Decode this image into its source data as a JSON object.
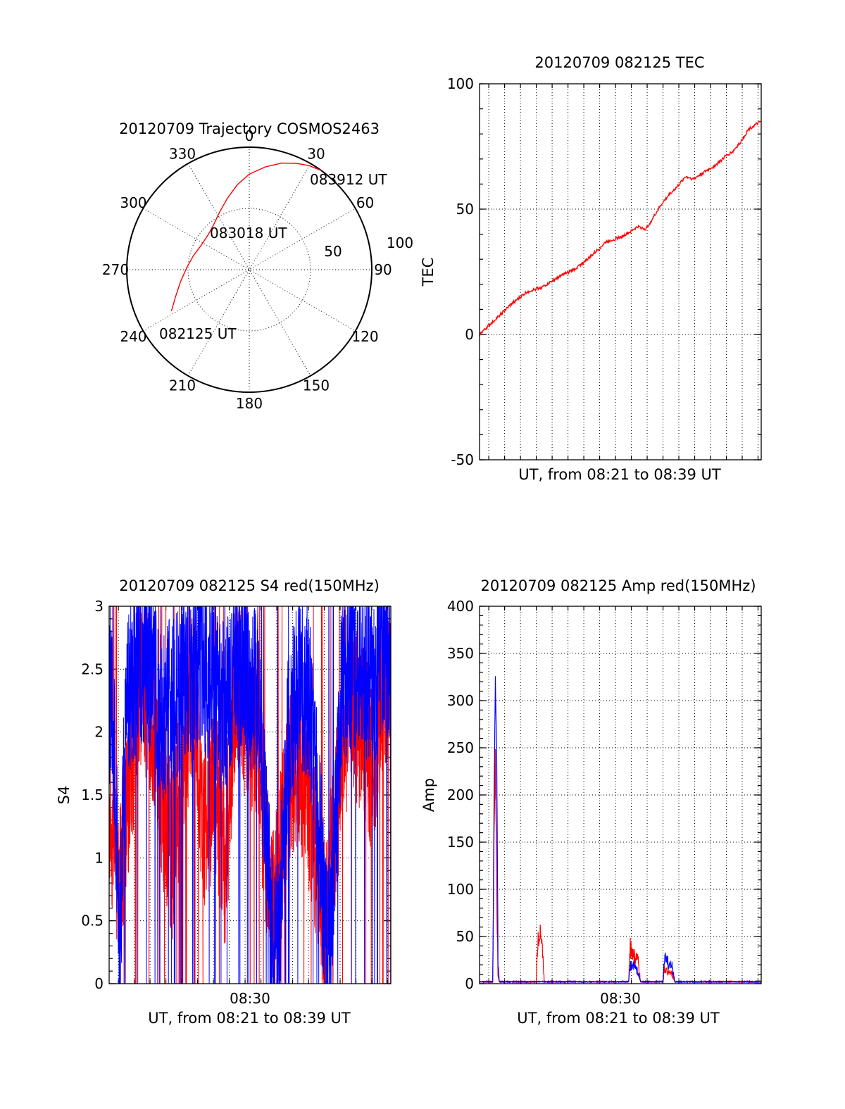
{
  "figure": {
    "date": "20120709",
    "satellite": "COSMOS2463"
  },
  "colors": {
    "red": "#ff0000",
    "blue": "#0000ff",
    "axis": "#000000"
  },
  "chart_data": [
    {
      "id": "trajectory",
      "type": "polar",
      "title": "20120709 Trajectory COSMOS2463",
      "angle_labels": [
        "0",
        "30",
        "60",
        "90",
        "120",
        "150",
        "180",
        "210",
        "240",
        "270",
        "300",
        "330"
      ],
      "radius_labels": [
        "50",
        "100"
      ],
      "rlim": [
        0,
        100
      ],
      "track": {
        "points": [
          {
            "az": 242,
            "r": 72
          },
          {
            "az": 250,
            "r": 64
          },
          {
            "az": 260,
            "r": 57
          },
          {
            "az": 272,
            "r": 51
          },
          {
            "az": 284,
            "r": 47
          },
          {
            "az": 297,
            "r": 44
          },
          {
            "az": 310,
            "r": 44
          },
          {
            "az": 322,
            "r": 47
          },
          {
            "az": 333,
            "r": 53
          },
          {
            "az": 343,
            "r": 61
          },
          {
            "az": 352,
            "r": 70
          },
          {
            "az": 0,
            "r": 78
          },
          {
            "az": 9,
            "r": 85
          },
          {
            "az": 17,
            "r": 91
          },
          {
            "az": 24,
            "r": 95
          },
          {
            "az": 30,
            "r": 98
          },
          {
            "az": 36,
            "r": 100
          }
        ],
        "labels": [
          "082125 UT",
          "083018 UT",
          "083912 UT"
        ]
      },
      "grid": true
    },
    {
      "id": "tec",
      "type": "line",
      "title": "20120709 082125 TEC",
      "xlabel": "UT, from 08:21 to 08:39 UT",
      "ylabel": "TEC",
      "xlim": [
        "08:21:25",
        "08:39:12"
      ],
      "ylim": [
        -50,
        100
      ],
      "yticks": [
        -50,
        0,
        50,
        100
      ],
      "xticklabels": [],
      "grid": true,
      "series": [
        {
          "color": "#ff0000",
          "x": [
            "08:21:25",
            "08:22:25",
            "08:23:25",
            "08:24:25",
            "08:25:25",
            "08:25:55",
            "08:26:25",
            "08:27:25",
            "08:28:25",
            "08:28:55",
            "08:29:25",
            "08:30:25",
            "08:30:55",
            "08:31:25",
            "08:31:55",
            "08:32:25",
            "08:32:55",
            "08:33:25",
            "08:33:55",
            "08:34:25",
            "08:34:55",
            "08:35:25",
            "08:35:55",
            "08:36:25",
            "08:36:55",
            "08:37:25",
            "08:37:55",
            "08:38:25",
            "08:39:12"
          ],
          "y": [
            0,
            6,
            12,
            17,
            19,
            21,
            23,
            26,
            31,
            34,
            37,
            39,
            41,
            43,
            42,
            47,
            52,
            56,
            59,
            63,
            62,
            64,
            66,
            68,
            71,
            73,
            77,
            82,
            85
          ]
        }
      ]
    },
    {
      "id": "s4",
      "type": "line",
      "title": "20120709 082125 S4 red(150MHz)",
      "xlabel": "UT, from 08:21 to 08:39 UT",
      "ylabel": "S4",
      "xlim": [
        "08:21:25",
        "08:39:12"
      ],
      "ylim": [
        0,
        3
      ],
      "yticks": [
        0,
        0.5,
        1,
        1.5,
        2,
        2.5,
        3
      ],
      "yticklabels": [
        "0",
        "0.5",
        "1",
        "1.5",
        "2",
        "2.5",
        "3"
      ],
      "xticklabels": [
        "08:30"
      ],
      "grid": true,
      "series": [
        {
          "color": "#ff0000",
          "x": [
            "08:21:25",
            "08:21:45",
            "08:22:05",
            "08:22:25",
            "08:22:45",
            "08:23:25",
            "08:24:05",
            "08:24:45",
            "08:25:25",
            "08:26:05",
            "08:26:45",
            "08:27:25",
            "08:28:05",
            "08:28:45",
            "08:29:25",
            "08:30:05",
            "08:30:45",
            "08:31:25",
            "08:31:45",
            "08:32:05",
            "08:32:45",
            "08:33:25",
            "08:34:05",
            "08:34:45",
            "08:35:05",
            "08:35:25",
            "08:36:05",
            "08:36:45",
            "08:37:25",
            "08:38:05",
            "08:38:45",
            "08:39:12"
          ],
          "y": [
            1.4,
            1.1,
            0.8,
            1.3,
            1.7,
            2.4,
            2.2,
            1.5,
            1.0,
            1.9,
            2.3,
            1.2,
            1.6,
            0.9,
            2.5,
            2.1,
            2.0,
            0.9,
            0.5,
            0.8,
            1.6,
            1.8,
            1.4,
            0.7,
            0.4,
            0.9,
            1.8,
            2.2,
            2.0,
            1.7,
            2.4,
            2.2
          ]
        },
        {
          "color": "#0000ff",
          "x": [
            "08:21:25",
            "08:21:45",
            "08:22:05",
            "08:22:25",
            "08:22:45",
            "08:23:25",
            "08:24:05",
            "08:24:45",
            "08:25:25",
            "08:26:05",
            "08:26:45",
            "08:27:25",
            "08:28:05",
            "08:28:45",
            "08:29:25",
            "08:30:05",
            "08:30:45",
            "08:31:25",
            "08:31:45",
            "08:32:05",
            "08:32:45",
            "08:33:25",
            "08:34:05",
            "08:34:45",
            "08:35:05",
            "08:35:25",
            "08:36:05",
            "08:36:45",
            "08:37:25",
            "08:38:05",
            "08:38:45",
            "08:39:12"
          ],
          "y": [
            2.3,
            1.9,
            0.2,
            2.0,
            2.4,
            2.6,
            2.5,
            2.1,
            2.3,
            2.4,
            2.6,
            2.5,
            2.3,
            2.2,
            2.6,
            2.4,
            2.3,
            1.0,
            0.3,
            0.3,
            2.0,
            2.4,
            2.2,
            1.2,
            0.3,
            0.4,
            2.3,
            2.6,
            2.5,
            2.4,
            2.7,
            2.6
          ]
        }
      ]
    },
    {
      "id": "amp",
      "type": "line",
      "title": "20120709 082125 Amp red(150MHz)",
      "xlabel": "UT, from 08:21 to 08:39 UT",
      "ylabel": "Amp",
      "xlim": [
        "08:21:25",
        "08:39:12"
      ],
      "ylim": [
        0,
        400
      ],
      "yticks": [
        0,
        50,
        100,
        150,
        200,
        250,
        300,
        350,
        400
      ],
      "xticklabels": [
        "08:30"
      ],
      "grid": true,
      "series": [
        {
          "color": "#ff0000",
          "x": [
            "08:21:25",
            "08:22:15",
            "08:22:20",
            "08:22:25",
            "08:22:30",
            "08:22:35",
            "08:22:40",
            "08:25:00",
            "08:25:05",
            "08:25:15",
            "08:25:25",
            "08:25:30",
            "08:30:50",
            "08:30:55",
            "08:31:10",
            "08:31:25",
            "08:31:35",
            "08:33:00",
            "08:33:05",
            "08:33:20",
            "08:33:35",
            "08:33:45",
            "08:39:12"
          ],
          "y": [
            2,
            2,
            150,
            240,
            100,
            8,
            2,
            2,
            40,
            60,
            30,
            2,
            2,
            38,
            30,
            25,
            2,
            2,
            15,
            12,
            10,
            2,
            2
          ]
        },
        {
          "color": "#0000ff",
          "x": [
            "08:21:25",
            "08:22:15",
            "08:22:20",
            "08:22:25",
            "08:22:30",
            "08:22:35",
            "08:22:40",
            "08:30:50",
            "08:30:55",
            "08:31:10",
            "08:31:25",
            "08:31:35",
            "08:33:00",
            "08:33:05",
            "08:33:20",
            "08:33:35",
            "08:33:45",
            "08:39:12"
          ],
          "y": [
            2,
            2,
            200,
            320,
            250,
            20,
            2,
            2,
            18,
            20,
            12,
            2,
            2,
            28,
            22,
            18,
            2,
            2
          ]
        }
      ]
    }
  ]
}
